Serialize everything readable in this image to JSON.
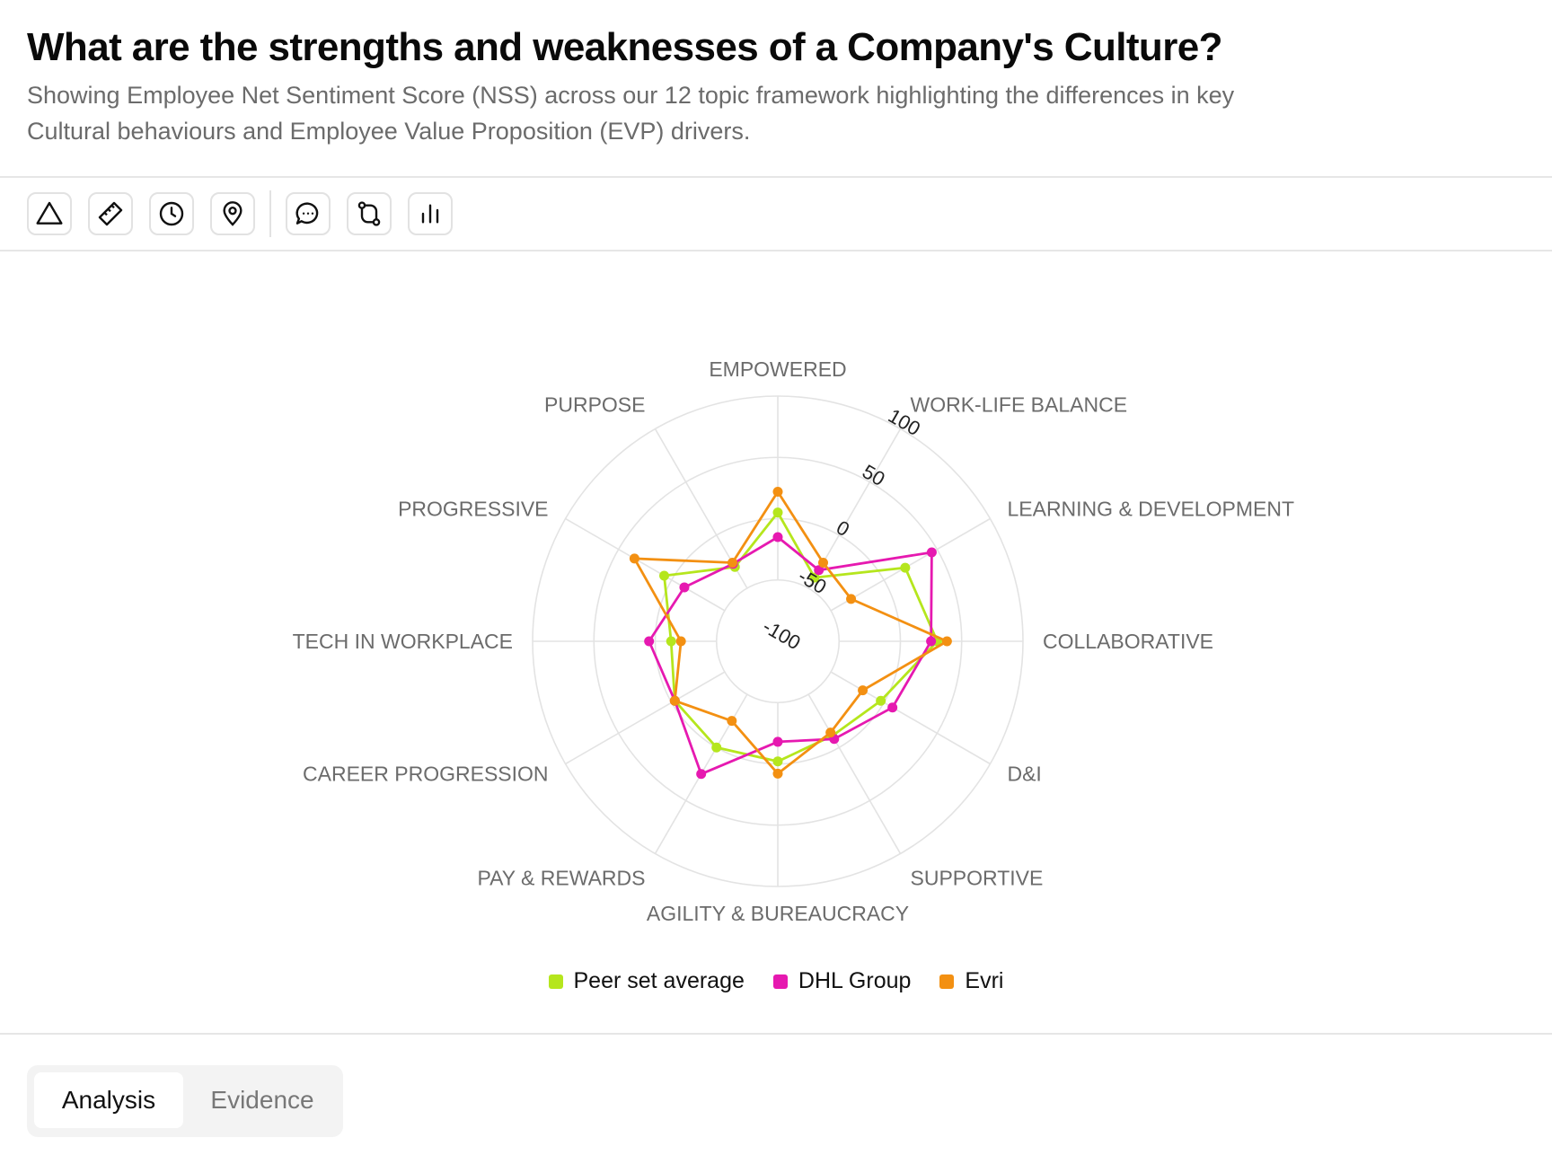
{
  "header": {
    "title": "What are the strengths and weaknesses of a Company's Culture?",
    "subtitle": "Showing Employee Net Sentiment Score (NSS) across our 12 topic framework highlighting the differences in key Cultural behaviours and Employee Value Proposition (EVP) drivers."
  },
  "toolbar": [
    {
      "icon": "triangle-icon"
    },
    {
      "icon": "ruler-icon"
    },
    {
      "icon": "clock-icon"
    },
    {
      "icon": "map-pin-icon"
    },
    {
      "icon": "message-icon"
    },
    {
      "icon": "compare-icon"
    },
    {
      "icon": "bar-chart-icon"
    }
  ],
  "chart_data": {
    "type": "radar",
    "categories": [
      "EMPOWERED",
      "WORK-LIFE BALANCE",
      "LEARNING & DEVELOPMENT",
      "COLLABORATIVE",
      "D&I",
      "SUPPORTIVE",
      "AGILITY & BUREAUCRACY",
      "PAY & REWARDS",
      "CAREER PROGRESSION",
      "TECH IN WORKPLACE",
      "PROGRESSIVE",
      "PURPOSE"
    ],
    "r_ticks": [
      -100,
      -50,
      0,
      50,
      100
    ],
    "rlim": [
      -100,
      100
    ],
    "series": [
      {
        "name": "Peer set average",
        "color": "#b5e61d",
        "values": [
          5,
          -40,
          20,
          30,
          -3,
          -11,
          -2,
          0,
          -3,
          -13,
          7,
          -30
        ]
      },
      {
        "name": "DHL Group",
        "color": "#e619b0",
        "values": [
          -15,
          -33,
          45,
          25,
          8,
          -8,
          -18,
          25,
          -3,
          5,
          -12,
          -27
        ]
      },
      {
        "name": "Evri",
        "color": "#f39012",
        "values": [
          22,
          -26,
          -31,
          38,
          -20,
          -14,
          8,
          -25,
          -3,
          -21,
          35,
          -26
        ]
      }
    ],
    "legend_position": "bottom"
  },
  "tabs": {
    "analysis": "Analysis",
    "evidence": "Evidence"
  }
}
